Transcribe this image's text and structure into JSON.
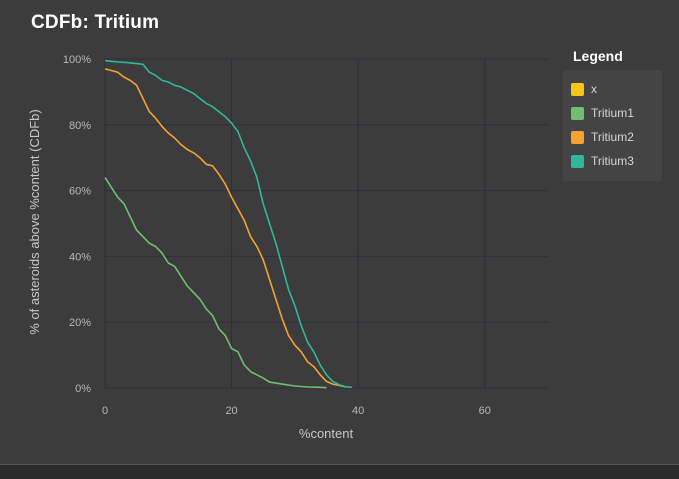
{
  "chart_data": {
    "type": "line",
    "title": "CDFb: Tritium",
    "xlabel": "%content",
    "ylabel": "% of asteroids above %content (CDFb)",
    "xlim": [
      0,
      70
    ],
    "ylim": [
      0,
      100
    ],
    "x_ticks": [
      0,
      20,
      40,
      60
    ],
    "y_ticks": [
      0,
      20,
      40,
      60,
      80,
      100
    ],
    "y_tick_labels": [
      "0%",
      "20%",
      "40%",
      "60%",
      "80%",
      "100%"
    ],
    "grid": true,
    "legend_title": "Legend",
    "legend_position": "right",
    "series": [
      {
        "name": "x",
        "color": "#f5c518",
        "x": [],
        "y": []
      },
      {
        "name": "Tritium1",
        "color": "#6fbf73",
        "x": [
          0,
          1,
          2,
          3,
          4,
          5,
          6,
          7,
          8,
          9,
          10,
          11,
          12,
          13,
          14,
          15,
          16,
          17,
          18,
          19,
          20,
          21,
          22,
          23,
          24,
          25,
          26,
          28,
          30,
          32,
          34,
          35
        ],
        "y": [
          64,
          61,
          58,
          56,
          52,
          48,
          46,
          44,
          43,
          41,
          38,
          37,
          34,
          31,
          29,
          27,
          24,
          22,
          18,
          16,
          12,
          11,
          7,
          5,
          4,
          3,
          1.8,
          1.2,
          0.6,
          0.3,
          0.2,
          0.1
        ]
      },
      {
        "name": "Tritium2",
        "color": "#f5a233",
        "x": [
          0,
          1,
          2,
          3,
          4,
          5,
          6,
          7,
          8,
          9,
          10,
          11,
          12,
          13,
          14,
          15,
          16,
          17,
          18,
          19,
          20,
          21,
          22,
          23,
          24,
          25,
          26,
          27,
          28,
          29,
          30,
          31,
          32,
          33,
          34,
          35,
          36,
          37,
          38
        ],
        "y": [
          97,
          96.5,
          96,
          94.5,
          93.5,
          92,
          88,
          84,
          82,
          79.5,
          77.5,
          76,
          74,
          72.5,
          71.5,
          70,
          68,
          67.5,
          65,
          62,
          58,
          54.5,
          51,
          46,
          43,
          39,
          33,
          27,
          21,
          16,
          13,
          11,
          8,
          6.5,
          4,
          2,
          1.2,
          0.8,
          0.3
        ]
      },
      {
        "name": "Tritium3",
        "color": "#2fb89a",
        "x": [
          0,
          1,
          2,
          3,
          4,
          5,
          6,
          7,
          8,
          9,
          10,
          11,
          12,
          13,
          14,
          15,
          16,
          17,
          18,
          19,
          20,
          21,
          22,
          23,
          24,
          25,
          26,
          27,
          28,
          29,
          30,
          31,
          32,
          33,
          34,
          35,
          36,
          37,
          38,
          39
        ],
        "y": [
          99.5,
          99.3,
          99.1,
          99,
          98.8,
          98.6,
          98.4,
          96,
          95,
          93.5,
          93,
          92,
          91.5,
          90.5,
          89.5,
          88,
          86.5,
          85.5,
          84,
          82.5,
          80.5,
          78,
          73,
          69,
          64,
          56,
          50,
          44,
          37,
          30,
          25,
          19,
          14,
          11,
          7,
          4,
          2,
          1,
          0.4,
          0.2
        ]
      }
    ],
    "extra_series_note_omitted": false
  },
  "legend": {
    "items": [
      {
        "label": "x",
        "color": "#f5c518"
      },
      {
        "label": "Tritium1",
        "color": "#6fbf73"
      },
      {
        "label": "Tritium2",
        "color": "#f5a233"
      },
      {
        "label": "Tritium3",
        "color": "#2fb89a"
      }
    ]
  }
}
